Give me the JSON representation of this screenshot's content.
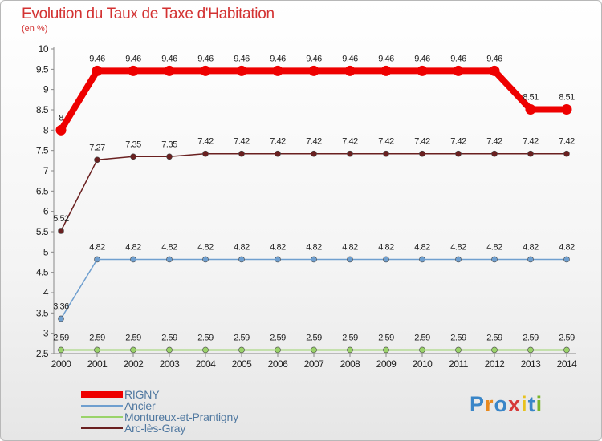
{
  "header": {
    "title": "Evolution du Taux de Taxe d'Habitation",
    "subtitle": "(en %)"
  },
  "logo": {
    "text": "Proxiti",
    "letter_colors": [
      "#3a86c8",
      "#e8891e",
      "#3a86c8",
      "#d63a3a",
      "#e8c21e",
      "#3a86c8",
      "#7ab52a"
    ]
  },
  "chart_data": {
    "type": "line",
    "title": "Evolution du Taux de Taxe d'Habitation",
    "ylabel": "(en %)",
    "xlabel": "",
    "x": [
      "2000",
      "2001",
      "2002",
      "2003",
      "2004",
      "2005",
      "2006",
      "2007",
      "2008",
      "2009",
      "2010",
      "2011",
      "2012",
      "2013",
      "2014"
    ],
    "y_ticks": [
      "2.5",
      "3",
      "3.5",
      "4",
      "4.5",
      "5",
      "5.5",
      "6",
      "6.5",
      "7",
      "7.5",
      "8",
      "8.5",
      "9",
      "9.5",
      "10"
    ],
    "ylim": [
      2.5,
      10
    ],
    "grid": false,
    "legend_position": "bottom-left",
    "series": [
      {
        "name": "RIGNY",
        "color": "#ee0000",
        "values": [
          8,
          9.46,
          9.46,
          9.46,
          9.46,
          9.46,
          9.46,
          9.46,
          9.46,
          9.46,
          9.46,
          9.46,
          9.46,
          8.51,
          8.51
        ],
        "labels": [
          "8",
          "9.46",
          "9.46",
          "9.46",
          "9.46",
          "9.46",
          "9.46",
          "9.46",
          "9.46",
          "9.46",
          "9.46",
          "9.46",
          "9.46",
          "8.51",
          "8.51"
        ]
      },
      {
        "name": "Ancier",
        "color": "#6f9fcf",
        "values": [
          3.36,
          4.82,
          4.82,
          4.82,
          4.82,
          4.82,
          4.82,
          4.82,
          4.82,
          4.82,
          4.82,
          4.82,
          4.82,
          4.82,
          4.82
        ],
        "labels": [
          "3.36",
          "4.82",
          "4.82",
          "4.82",
          "4.82",
          "4.82",
          "4.82",
          "4.82",
          "4.82",
          "4.82",
          "4.82",
          "4.82",
          "4.82",
          "4.82",
          "4.82"
        ]
      },
      {
        "name": "Montureux-et-Prantigny",
        "color": "#9ad36a",
        "values": [
          2.59,
          2.59,
          2.59,
          2.59,
          2.59,
          2.59,
          2.59,
          2.59,
          2.59,
          2.59,
          2.59,
          2.59,
          2.59,
          2.59,
          2.59
        ],
        "labels": [
          "2.59",
          "2.59",
          "2.59",
          "2.59",
          "2.59",
          "2.59",
          "2.59",
          "2.59",
          "2.59",
          "2.59",
          "2.59",
          "2.59",
          "2.59",
          "2.59",
          "2.59"
        ]
      },
      {
        "name": "Arc-lès-Gray",
        "color": "#6a2020",
        "values": [
          5.52,
          7.27,
          7.35,
          7.35,
          7.42,
          7.42,
          7.42,
          7.42,
          7.42,
          7.42,
          7.42,
          7.42,
          7.42,
          7.42,
          7.42
        ],
        "labels": [
          "5.52",
          "7.27",
          "7.35",
          "7.35",
          "7.42",
          "7.42",
          "7.42",
          "7.42",
          "7.42",
          "7.42",
          "7.42",
          "7.42",
          "7.42",
          "7.42",
          "7.42"
        ]
      }
    ]
  }
}
